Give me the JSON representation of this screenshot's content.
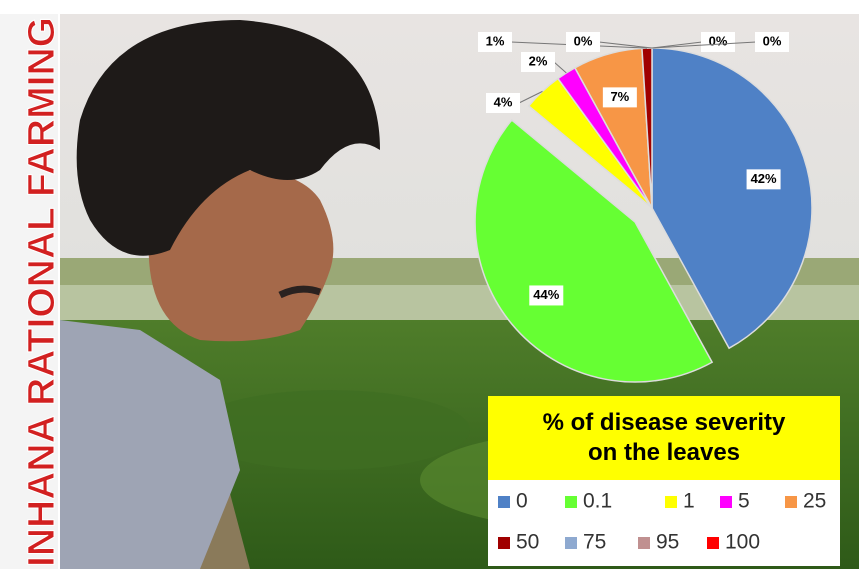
{
  "side_text": "INHANA RATIONAL FARMING",
  "chart_data": {
    "type": "pie",
    "title": "% of disease severity on the leaves",
    "categories": [
      "0",
      "0.1",
      "1",
      "5",
      "25",
      "50",
      "75",
      "95",
      "100"
    ],
    "values": [
      42,
      44,
      4,
      2,
      7,
      1,
      0,
      0,
      0
    ],
    "value_labels": [
      "42%",
      "44%",
      "4%",
      "2%",
      "7%",
      "1%",
      "0%",
      "0%",
      "0%"
    ],
    "colors": [
      "#4f81c6",
      "#66ff33",
      "#ffff00",
      "#ff00ff",
      "#f79646",
      "#a00000",
      "#8ea9d0",
      "#c09090",
      "#ff0000"
    ],
    "exploded": "0.1",
    "legend": "bottom-right"
  }
}
